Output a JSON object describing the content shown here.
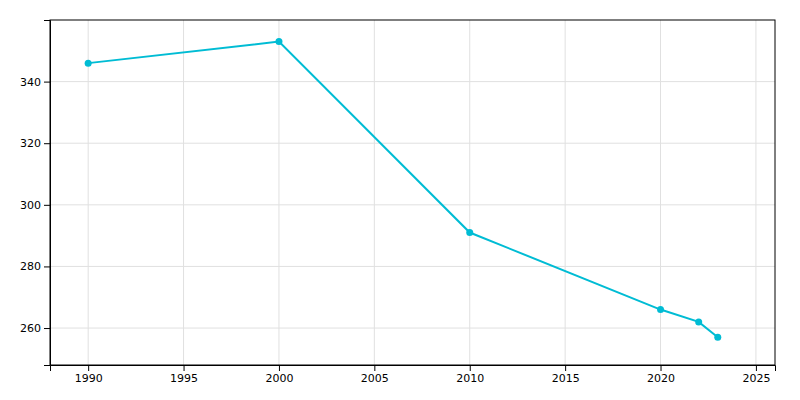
{
  "chart_data": {
    "type": "line",
    "x": [
      1990,
      2000,
      2010,
      2020,
      2022,
      2023
    ],
    "values": [
      346,
      353,
      291,
      266,
      262,
      257
    ],
    "color": "#00BCD4",
    "marker": "circle",
    "xlim": [
      1988,
      2026
    ],
    "ylim": [
      248,
      360
    ],
    "xticks": [
      1990,
      1995,
      2000,
      2005,
      2010,
      2015,
      2020,
      2025
    ],
    "yticks": [
      260,
      280,
      300,
      320,
      340
    ],
    "grid": true
  }
}
